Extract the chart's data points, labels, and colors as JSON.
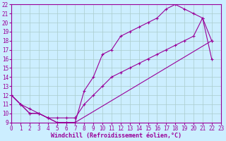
{
  "xlabel": "Windchill (Refroidissement éolien,°C)",
  "bg_color": "#cceeff",
  "grid_color": "#aacccc",
  "line_color": "#990099",
  "xlim": [
    0,
    23
  ],
  "ylim": [
    9,
    22
  ],
  "xticks": [
    0,
    1,
    2,
    3,
    4,
    5,
    6,
    7,
    8,
    9,
    10,
    11,
    12,
    13,
    14,
    15,
    16,
    17,
    18,
    19,
    20,
    21,
    22,
    23
  ],
  "yticks": [
    9,
    10,
    11,
    12,
    13,
    14,
    15,
    16,
    17,
    18,
    19,
    20,
    21,
    22
  ],
  "line1_x": [
    0,
    1,
    2,
    3,
    4,
    5,
    6,
    7,
    8,
    9,
    10,
    11,
    12,
    13,
    14,
    15,
    16,
    17,
    18,
    19,
    20,
    21,
    22
  ],
  "line1_y": [
    12,
    11,
    10,
    10,
    9.5,
    9,
    9,
    9,
    12.5,
    14,
    16.5,
    17,
    18.5,
    19.0,
    19.5,
    20.0,
    20.5,
    21.5,
    22.0,
    21.5,
    21.0,
    20.5,
    18.0
  ],
  "line2_x": [
    0,
    1,
    2,
    3,
    4,
    5,
    6,
    7,
    22
  ],
  "line2_y": [
    12,
    11,
    10,
    10,
    9.5,
    9,
    9,
    9,
    18.0
  ],
  "line3_x": [
    0,
    1,
    2,
    3,
    4,
    5,
    6,
    7,
    8,
    9,
    10,
    11,
    12,
    13,
    14,
    15,
    16,
    17,
    18,
    19,
    20,
    21,
    22
  ],
  "line3_y": [
    12,
    11,
    10.5,
    10,
    9.5,
    9.5,
    9.5,
    9.5,
    11,
    12,
    13,
    14,
    14.5,
    15,
    15.5,
    16,
    16.5,
    17,
    17.5,
    18,
    18.5,
    20.5,
    16.0
  ],
  "marker": "+",
  "marker_size": 3,
  "line_width": 0.8,
  "tick_fontsize": 5.5,
  "xlabel_fontsize": 6.0
}
